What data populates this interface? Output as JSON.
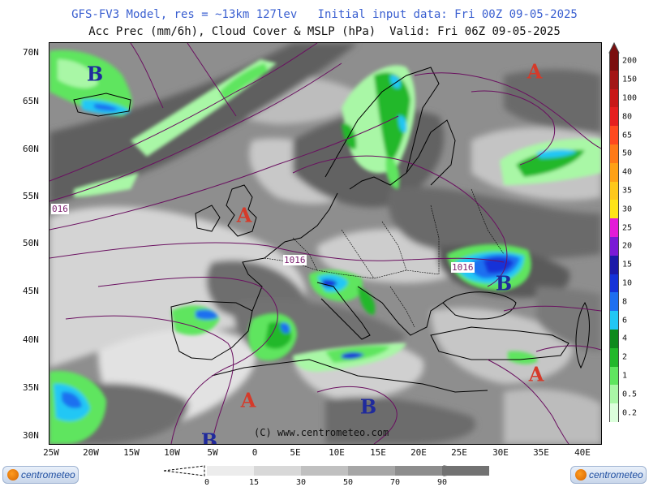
{
  "header": {
    "title": "GFS-FV3 Model, res = ~13km 127lev   Initial input data: Fri 00Z 09-05-2025",
    "subtitle": "Acc Prec (mm/6h), Cloud Cover & MSLP (hPa)  Valid: Fri 06Z 09-05-2025"
  },
  "map": {
    "lat_labels": [
      "70N",
      "65N",
      "60N",
      "55N",
      "50N",
      "45N",
      "40N",
      "35N",
      "30N"
    ],
    "lon_labels": [
      "25W",
      "20W",
      "15W",
      "10W",
      "5W",
      "0",
      "5E",
      "10E",
      "15E",
      "20E",
      "25E",
      "30E",
      "35E",
      "40E"
    ],
    "isobar_labels": [
      "016",
      "1016",
      "1016"
    ],
    "pressure_centers": [
      {
        "label": "B",
        "type": "low"
      },
      {
        "label": "A",
        "type": "high"
      },
      {
        "label": "A",
        "type": "high"
      },
      {
        "label": "B",
        "type": "low"
      },
      {
        "label": "A",
        "type": "high"
      },
      {
        "label": "A",
        "type": "high"
      },
      {
        "label": "B",
        "type": "low"
      },
      {
        "label": "B",
        "type": "low"
      }
    ],
    "credit": "(C) www.centrometeo.com"
  },
  "precip_legend": {
    "labels": [
      "200",
      "150",
      "100",
      "80",
      "65",
      "50",
      "40",
      "35",
      "30",
      "25",
      "20",
      "15",
      "10",
      "8",
      "6",
      "4",
      "2",
      "1",
      "0.5",
      "0.2"
    ],
    "colors": [
      "#7b0f0f",
      "#a31616",
      "#c81818",
      "#e51f1f",
      "#ff4a1f",
      "#ff7a18",
      "#ffa116",
      "#ffc81a",
      "#ffe418",
      "#e31bd8",
      "#7a1ad6",
      "#1c1aa8",
      "#1532d8",
      "#1e6ff0",
      "#21c7f5",
      "#0e8a1c",
      "#22b82a",
      "#5fe55f",
      "#a9f7a6",
      "#dcffdc"
    ]
  },
  "cloud_legend": {
    "labels": [
      "0",
      "15",
      "30",
      "50",
      "70",
      "90"
    ],
    "colors": [
      "#ececec",
      "#d8d8d8",
      "#c0c0c0",
      "#a6a6a6",
      "#8d8d8d",
      "#727272"
    ]
  },
  "logos": {
    "left": "centrometeo",
    "right": "centrometeo"
  }
}
